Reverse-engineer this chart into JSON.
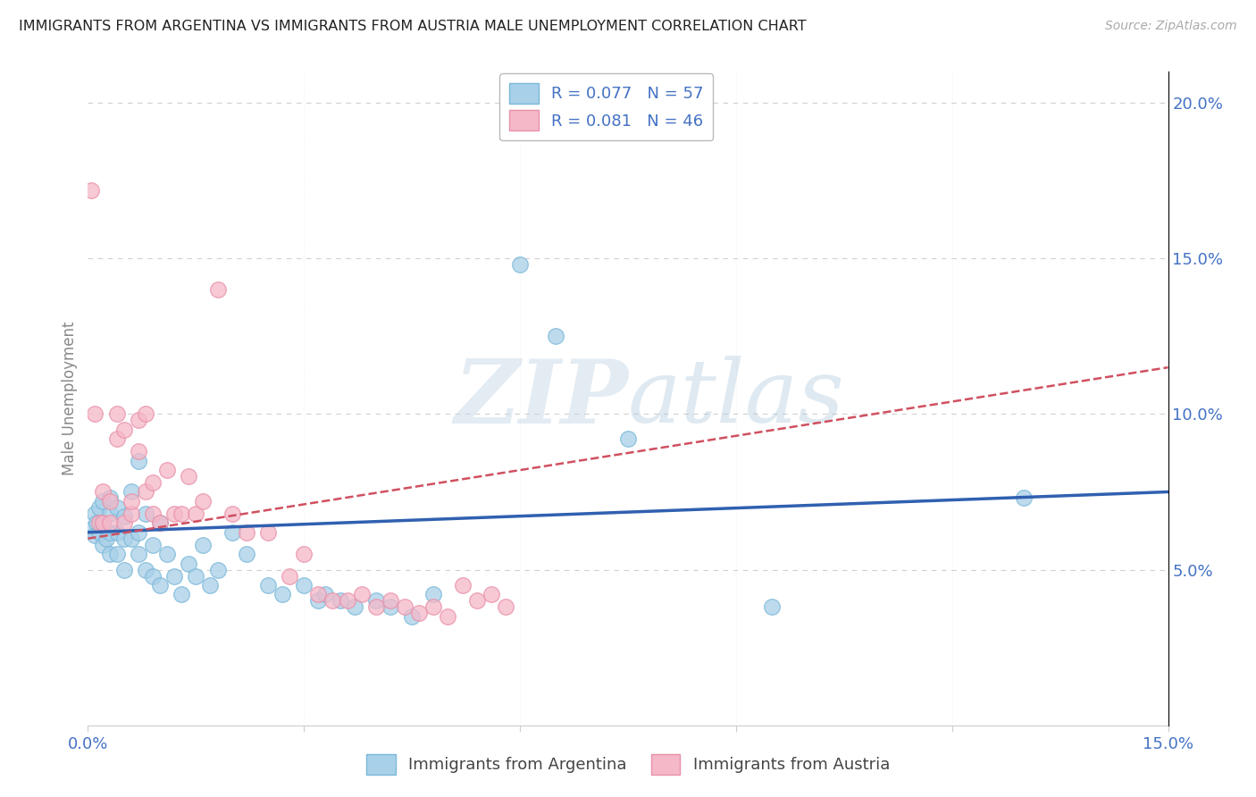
{
  "title": "IMMIGRANTS FROM ARGENTINA VS IMMIGRANTS FROM AUSTRIA MALE UNEMPLOYMENT CORRELATION CHART",
  "source": "Source: ZipAtlas.com",
  "ylabel": "Male Unemployment",
  "xlim": [
    0.0,
    0.15
  ],
  "ylim": [
    0.0,
    0.21
  ],
  "xtick_positions": [
    0.0,
    0.03,
    0.06,
    0.09,
    0.12,
    0.15
  ],
  "xtick_labels": [
    "0.0%",
    "",
    "",
    "",
    "",
    "15.0%"
  ],
  "ytick_positions": [
    0.05,
    0.1,
    0.15,
    0.2
  ],
  "ytick_labels": [
    "5.0%",
    "10.0%",
    "15.0%",
    "20.0%"
  ],
  "argentina_color_fill": "#a8d0e8",
  "argentina_color_edge": "#7ab8d9",
  "austria_color_fill": "#f5b8c8",
  "austria_color_edge": "#e890a8",
  "argentina_line_color": "#3060b0",
  "austria_line_color": "#d05060",
  "legend_r_argentina": "R = 0.077",
  "legend_n_argentina": "N = 57",
  "legend_r_austria": "R = 0.081",
  "legend_n_austria": "N = 46",
  "watermark_zip": "ZIP",
  "watermark_atlas": "atlas",
  "background_color": "#ffffff",
  "grid_color": "#d0d0d0",
  "title_color": "#222222",
  "axis_label_color": "#888888",
  "tick_label_color": "#4472c4",
  "legend_text_color": "#4472c4",
  "argentina_x": [
    0.0005,
    0.001,
    0.001,
    0.0012,
    0.0015,
    0.0015,
    0.002,
    0.002,
    0.002,
    0.0025,
    0.003,
    0.003,
    0.003,
    0.003,
    0.004,
    0.004,
    0.004,
    0.005,
    0.005,
    0.005,
    0.006,
    0.006,
    0.007,
    0.007,
    0.007,
    0.008,
    0.008,
    0.009,
    0.009,
    0.01,
    0.01,
    0.011,
    0.012,
    0.013,
    0.014,
    0.015,
    0.016,
    0.017,
    0.018,
    0.02,
    0.022,
    0.025,
    0.027,
    0.03,
    0.032,
    0.033,
    0.035,
    0.037,
    0.04,
    0.042,
    0.045,
    0.048,
    0.06,
    0.065,
    0.075,
    0.095,
    0.13
  ],
  "argentina_y": [
    0.063,
    0.068,
    0.061,
    0.065,
    0.062,
    0.07,
    0.058,
    0.065,
    0.072,
    0.06,
    0.055,
    0.062,
    0.068,
    0.073,
    0.055,
    0.062,
    0.07,
    0.05,
    0.06,
    0.067,
    0.06,
    0.075,
    0.055,
    0.062,
    0.085,
    0.05,
    0.068,
    0.048,
    0.058,
    0.045,
    0.065,
    0.055,
    0.048,
    0.042,
    0.052,
    0.048,
    0.058,
    0.045,
    0.05,
    0.062,
    0.055,
    0.045,
    0.042,
    0.045,
    0.04,
    0.042,
    0.04,
    0.038,
    0.04,
    0.038,
    0.035,
    0.042,
    0.148,
    0.125,
    0.092,
    0.038,
    0.073
  ],
  "austria_x": [
    0.0005,
    0.001,
    0.0015,
    0.002,
    0.002,
    0.003,
    0.003,
    0.004,
    0.004,
    0.005,
    0.005,
    0.006,
    0.006,
    0.007,
    0.007,
    0.008,
    0.008,
    0.009,
    0.009,
    0.01,
    0.011,
    0.012,
    0.013,
    0.014,
    0.015,
    0.016,
    0.018,
    0.02,
    0.022,
    0.025,
    0.028,
    0.03,
    0.032,
    0.034,
    0.036,
    0.038,
    0.04,
    0.042,
    0.044,
    0.046,
    0.048,
    0.05,
    0.052,
    0.054,
    0.056,
    0.058
  ],
  "austria_y": [
    0.172,
    0.1,
    0.065,
    0.065,
    0.075,
    0.065,
    0.072,
    0.1,
    0.092,
    0.065,
    0.095,
    0.068,
    0.072,
    0.088,
    0.098,
    0.075,
    0.1,
    0.068,
    0.078,
    0.065,
    0.082,
    0.068,
    0.068,
    0.08,
    0.068,
    0.072,
    0.14,
    0.068,
    0.062,
    0.062,
    0.048,
    0.055,
    0.042,
    0.04,
    0.04,
    0.042,
    0.038,
    0.04,
    0.038,
    0.036,
    0.038,
    0.035,
    0.045,
    0.04,
    0.042,
    0.038
  ],
  "arg_line_x0": 0.0,
  "arg_line_x1": 0.15,
  "arg_line_y0": 0.062,
  "arg_line_y1": 0.075,
  "aut_line_x0": 0.0,
  "aut_line_x1": 0.15,
  "aut_line_y0": 0.06,
  "aut_line_y1": 0.115
}
